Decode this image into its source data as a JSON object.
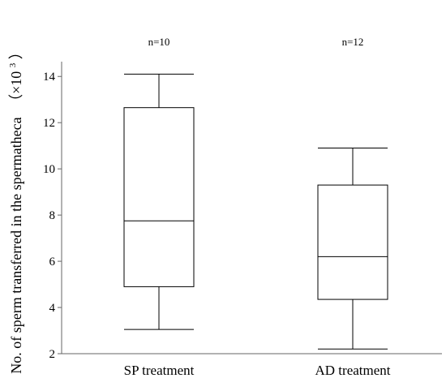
{
  "chart_data": {
    "type": "box",
    "ylabel": "No. of sperm transferred in the spermatheca",
    "ylabel_unit_prefix": "（×10",
    "ylabel_unit_exp": "3",
    "ylabel_unit_suffix": "）",
    "ylim": [
      2,
      14.5
    ],
    "yticks": [
      2,
      4,
      6,
      8,
      10,
      12,
      14
    ],
    "categories": [
      "SP treatment",
      "AD treatment"
    ],
    "n_labels": [
      "n=10",
      "n=12"
    ],
    "boxes": [
      {
        "whisker_low": 3.05,
        "q1": 4.9,
        "median": 7.75,
        "q3": 12.65,
        "whisker_high": 14.1
      },
      {
        "whisker_low": 2.2,
        "q1": 4.35,
        "median": 6.2,
        "q3": 9.3,
        "whisker_high": 10.9
      }
    ]
  }
}
